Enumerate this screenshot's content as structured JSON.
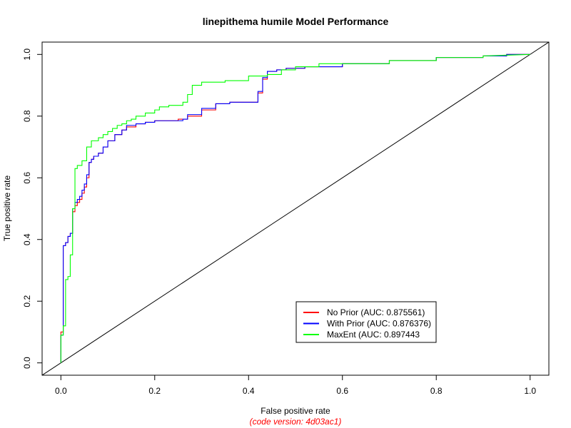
{
  "chart_data": {
    "type": "line",
    "title": "linepithema humile Model Performance",
    "xlabel": "False positive rate",
    "ylabel": "True positive rate",
    "caption": "(code version: 4d03ac1)",
    "caption_color": "#ff0000",
    "xlim": [
      -0.04,
      1.04
    ],
    "ylim": [
      -0.04,
      1.04
    ],
    "xticks": [
      "0.0",
      "0.2",
      "0.4",
      "0.6",
      "0.8",
      "1.0"
    ],
    "yticks": [
      "0.0",
      "0.2",
      "0.4",
      "0.6",
      "0.8",
      "1.0"
    ],
    "grid": false,
    "legend_position": "bottom-right",
    "diagonal": [
      [
        0,
        0
      ],
      [
        1,
        1
      ]
    ],
    "series": [
      {
        "name": "No Prior (AUC: 0.875561)",
        "color": "#ff0000",
        "x": [
          0,
          0,
          0.005,
          0.005,
          0.01,
          0.01,
          0.015,
          0.015,
          0.02,
          0.02,
          0.025,
          0.025,
          0.03,
          0.03,
          0.035,
          0.035,
          0.04,
          0.04,
          0.045,
          0.045,
          0.05,
          0.05,
          0.055,
          0.055,
          0.06,
          0.06,
          0.065,
          0.065,
          0.07,
          0.07,
          0.08,
          0.08,
          0.09,
          0.09,
          0.1,
          0.1,
          0.115,
          0.115,
          0.13,
          0.13,
          0.14,
          0.14,
          0.16,
          0.16,
          0.18,
          0.18,
          0.2,
          0.2,
          0.25,
          0.25,
          0.27,
          0.27,
          0.3,
          0.3,
          0.33,
          0.33,
          0.36,
          0.36,
          0.42,
          0.42,
          0.43,
          0.43,
          0.44,
          0.44,
          0.46,
          0.46,
          0.48,
          0.48,
          0.52,
          0.52,
          0.6,
          0.6,
          0.7,
          0.7,
          0.8,
          0.8,
          0.9,
          0.9,
          0.95,
          0.95,
          1.0
        ],
        "y": [
          0,
          0.1,
          0.1,
          0.38,
          0.38,
          0.39,
          0.39,
          0.41,
          0.41,
          0.42,
          0.42,
          0.49,
          0.49,
          0.51,
          0.51,
          0.52,
          0.52,
          0.53,
          0.53,
          0.55,
          0.55,
          0.57,
          0.57,
          0.6,
          0.6,
          0.65,
          0.65,
          0.66,
          0.66,
          0.67,
          0.67,
          0.68,
          0.68,
          0.7,
          0.7,
          0.72,
          0.72,
          0.74,
          0.74,
          0.755,
          0.755,
          0.765,
          0.765,
          0.775,
          0.775,
          0.78,
          0.78,
          0.785,
          0.785,
          0.79,
          0.79,
          0.8,
          0.8,
          0.82,
          0.82,
          0.84,
          0.84,
          0.845,
          0.845,
          0.875,
          0.875,
          0.92,
          0.92,
          0.945,
          0.945,
          0.95,
          0.95,
          0.955,
          0.955,
          0.96,
          0.96,
          0.97,
          0.97,
          0.98,
          0.98,
          0.99,
          0.99,
          0.995,
          0.995,
          1.0,
          1.0
        ]
      },
      {
        "name": "With Prior (AUC: 0.876376)",
        "color": "#0000ff",
        "x": [
          0,
          0,
          0.005,
          0.005,
          0.01,
          0.01,
          0.015,
          0.015,
          0.02,
          0.02,
          0.025,
          0.025,
          0.03,
          0.03,
          0.035,
          0.035,
          0.04,
          0.04,
          0.045,
          0.045,
          0.05,
          0.05,
          0.055,
          0.055,
          0.06,
          0.06,
          0.065,
          0.065,
          0.07,
          0.07,
          0.08,
          0.08,
          0.09,
          0.09,
          0.1,
          0.1,
          0.115,
          0.115,
          0.13,
          0.13,
          0.14,
          0.14,
          0.16,
          0.16,
          0.18,
          0.18,
          0.2,
          0.2,
          0.26,
          0.26,
          0.27,
          0.27,
          0.3,
          0.3,
          0.33,
          0.33,
          0.36,
          0.36,
          0.42,
          0.42,
          0.43,
          0.43,
          0.44,
          0.44,
          0.46,
          0.46,
          0.48,
          0.48,
          0.52,
          0.52,
          0.6,
          0.6,
          0.7,
          0.7,
          0.8,
          0.8,
          0.9,
          0.9,
          0.95,
          0.95,
          1.0
        ],
        "y": [
          0,
          0.09,
          0.09,
          0.38,
          0.38,
          0.39,
          0.39,
          0.41,
          0.41,
          0.42,
          0.42,
          0.5,
          0.5,
          0.52,
          0.52,
          0.53,
          0.53,
          0.54,
          0.54,
          0.56,
          0.56,
          0.58,
          0.58,
          0.61,
          0.61,
          0.65,
          0.65,
          0.66,
          0.66,
          0.67,
          0.67,
          0.68,
          0.68,
          0.7,
          0.7,
          0.72,
          0.72,
          0.74,
          0.74,
          0.755,
          0.755,
          0.77,
          0.77,
          0.775,
          0.775,
          0.78,
          0.78,
          0.785,
          0.785,
          0.79,
          0.79,
          0.805,
          0.805,
          0.825,
          0.825,
          0.84,
          0.84,
          0.845,
          0.845,
          0.88,
          0.88,
          0.925,
          0.925,
          0.945,
          0.945,
          0.95,
          0.95,
          0.955,
          0.955,
          0.96,
          0.96,
          0.97,
          0.97,
          0.98,
          0.98,
          0.99,
          0.99,
          0.995,
          0.995,
          1.0,
          1.0
        ]
      },
      {
        "name": "MaxEnt (AUC: 0.897443",
        "color": "#00ff00",
        "x": [
          0,
          0,
          0.005,
          0.005,
          0.01,
          0.01,
          0.015,
          0.015,
          0.02,
          0.02,
          0.025,
          0.025,
          0.03,
          0.03,
          0.035,
          0.035,
          0.045,
          0.045,
          0.055,
          0.055,
          0.065,
          0.065,
          0.08,
          0.08,
          0.09,
          0.09,
          0.1,
          0.1,
          0.11,
          0.11,
          0.12,
          0.12,
          0.13,
          0.13,
          0.14,
          0.14,
          0.15,
          0.15,
          0.16,
          0.16,
          0.18,
          0.18,
          0.2,
          0.2,
          0.21,
          0.21,
          0.23,
          0.23,
          0.26,
          0.26,
          0.27,
          0.27,
          0.28,
          0.28,
          0.3,
          0.3,
          0.35,
          0.35,
          0.4,
          0.4,
          0.44,
          0.44,
          0.47,
          0.47,
          0.5,
          0.5,
          0.55,
          0.55,
          0.7,
          0.7,
          0.8,
          0.8,
          0.9,
          0.9,
          1.0
        ],
        "y": [
          0,
          0.09,
          0.09,
          0.12,
          0.12,
          0.27,
          0.27,
          0.28,
          0.28,
          0.35,
          0.35,
          0.5,
          0.5,
          0.63,
          0.63,
          0.64,
          0.64,
          0.655,
          0.655,
          0.7,
          0.7,
          0.72,
          0.72,
          0.73,
          0.73,
          0.74,
          0.74,
          0.75,
          0.75,
          0.76,
          0.76,
          0.77,
          0.77,
          0.775,
          0.775,
          0.785,
          0.785,
          0.79,
          0.79,
          0.8,
          0.8,
          0.81,
          0.81,
          0.82,
          0.82,
          0.83,
          0.83,
          0.835,
          0.835,
          0.845,
          0.845,
          0.87,
          0.87,
          0.9,
          0.9,
          0.91,
          0.91,
          0.915,
          0.915,
          0.93,
          0.93,
          0.935,
          0.935,
          0.95,
          0.95,
          0.96,
          0.96,
          0.97,
          0.97,
          0.98,
          0.98,
          0.99,
          0.99,
          0.995,
          1.0
        ]
      }
    ]
  }
}
